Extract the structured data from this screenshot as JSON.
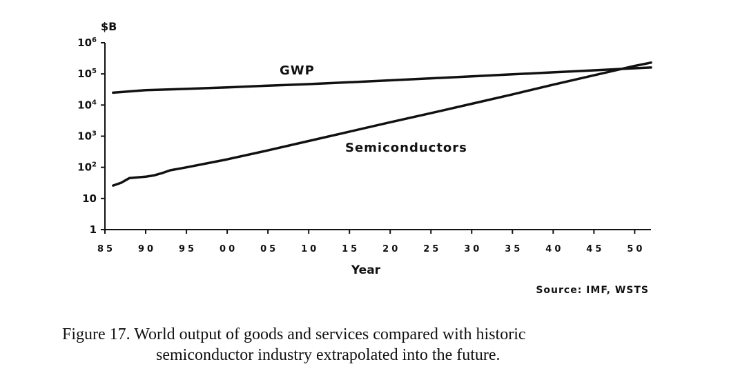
{
  "chart_data": {
    "type": "line",
    "title": "",
    "xlabel": "Year",
    "ylabel": "$B",
    "y_scale": "log",
    "ylim": [
      1,
      1000000
    ],
    "xlim": [
      1985,
      2052
    ],
    "x_tick_values": [
      1985,
      1990,
      1995,
      2000,
      2005,
      2010,
      2015,
      2020,
      2025,
      2030,
      2035,
      2040,
      2045,
      2050
    ],
    "x_tick_labels": [
      "85",
      "90",
      "95",
      "00",
      "05",
      "10",
      "15",
      "20",
      "25",
      "30",
      "35",
      "40",
      "45",
      "50"
    ],
    "y_ticks": [
      {
        "value": 1,
        "base": "1",
        "exp": ""
      },
      {
        "value": 10,
        "base": "10",
        "exp": ""
      },
      {
        "value": 100,
        "base": "10",
        "exp": "2"
      },
      {
        "value": 1000,
        "base": "10",
        "exp": "3"
      },
      {
        "value": 10000,
        "base": "10",
        "exp": "4"
      },
      {
        "value": 100000,
        "base": "10",
        "exp": "5"
      },
      {
        "value": 1000000,
        "base": "10",
        "exp": "6"
      }
    ],
    "grid": false,
    "legend": "none",
    "series": [
      {
        "name": "GWP",
        "x": [
          1986,
          1990,
          1995,
          2000,
          2005,
          2010,
          2015,
          2020,
          2025,
          2030,
          2035,
          2040,
          2045,
          2050,
          2052
        ],
        "values": [
          25000,
          30000,
          33000,
          37000,
          42000,
          47000,
          54000,
          62000,
          72000,
          83000,
          97000,
          112000,
          130000,
          152000,
          160000
        ]
      },
      {
        "name": "Semiconductors",
        "x": [
          1986,
          1987,
          1988,
          1990,
          1991,
          1992,
          1993,
          1995,
          2000,
          2005,
          2010,
          2015,
          2020,
          2025,
          2030,
          2035,
          2040,
          2045,
          2050,
          2052
        ],
        "values": [
          26,
          32,
          45,
          50,
          55,
          65,
          80,
          100,
          180,
          350,
          700,
          1400,
          2800,
          5500,
          11000,
          22000,
          45000,
          90000,
          180000,
          230000
        ]
      }
    ],
    "source": "Source: IMF, WSTS"
  },
  "caption": {
    "line1": "Figure 17.  World output of goods and services compared with historic",
    "line2": "semiconductor industry extrapolated into the future."
  },
  "colors": {
    "ink": "#111111",
    "background": "#ffffff"
  }
}
